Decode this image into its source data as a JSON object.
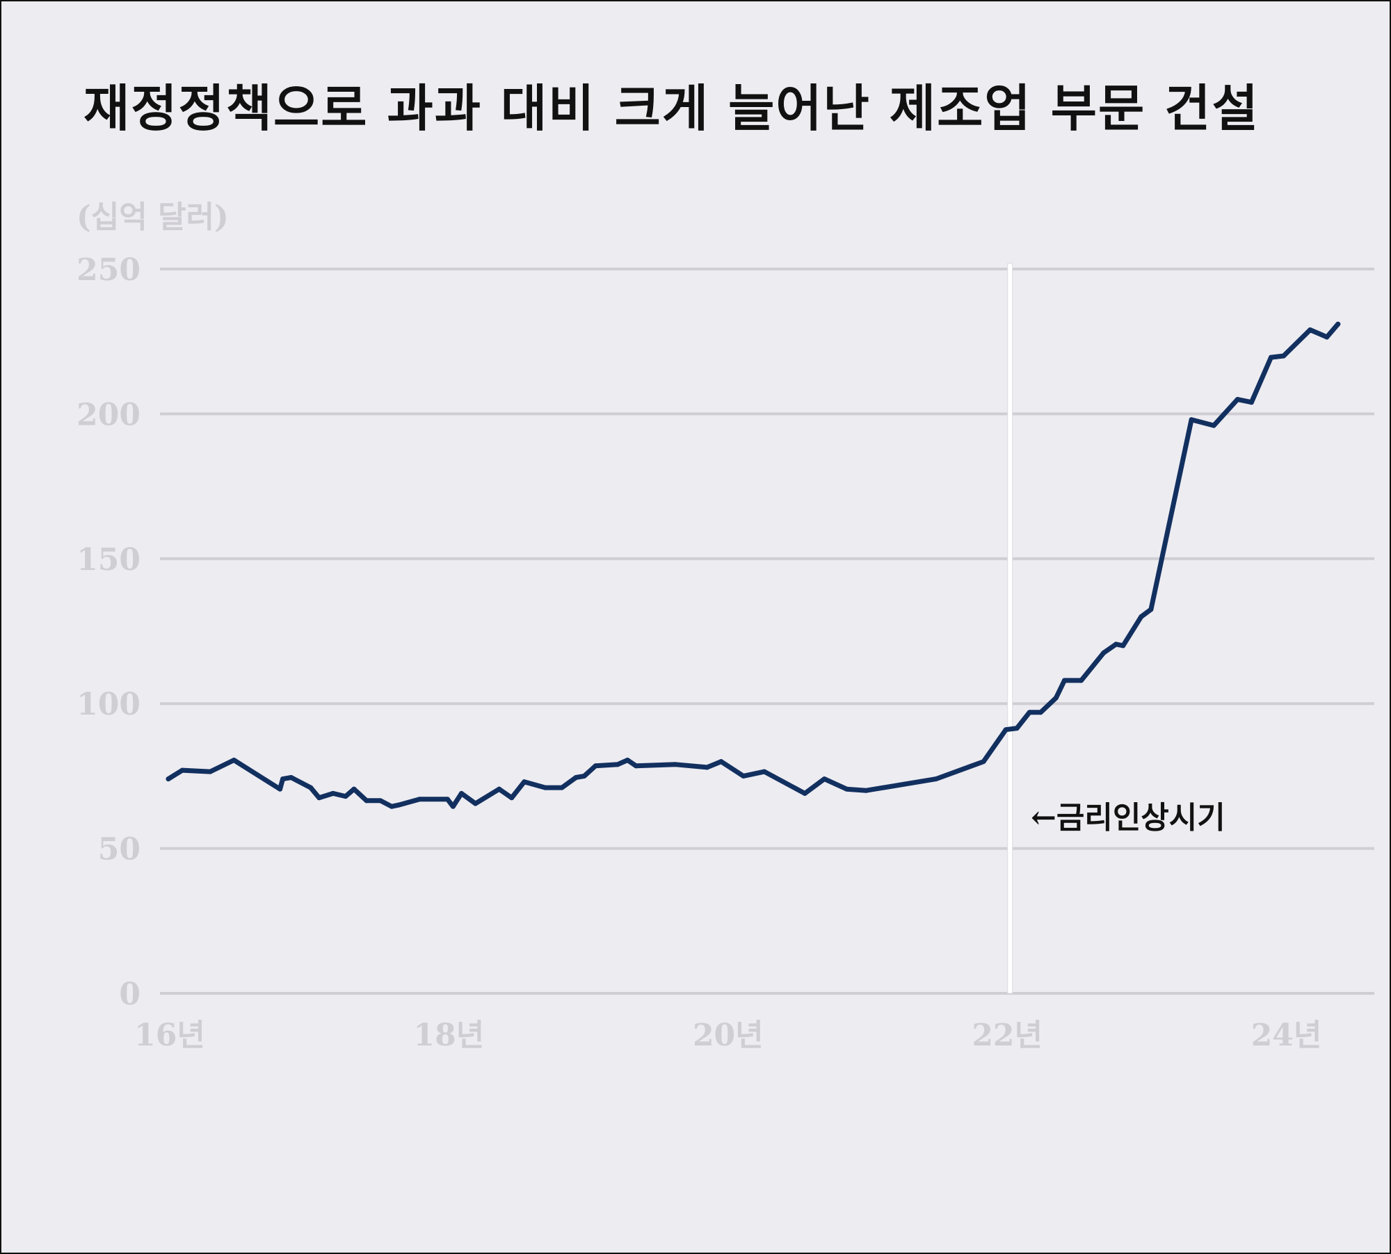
{
  "title": "재정정책으로 과과 대비 크게 늘어난 제조업 부문 건설",
  "colors": {
    "background": "#edecf1",
    "line": "#12305f",
    "grid": "#cfced3",
    "axis_text": "#cfced3",
    "marker": "#ffffff"
  },
  "chart_data": {
    "type": "line",
    "title": "재정정책으로 과과 대비 크게 늘어난 제조업 부문 건설",
    "ylabel": "(십억 달러)",
    "xlabel": "",
    "ylim": [
      0,
      250
    ],
    "yticks": [
      0,
      50,
      100,
      150,
      200,
      250
    ],
    "xlim": [
      2015.94,
      2024.64
    ],
    "xticks": [
      2016,
      2018,
      2020,
      2022,
      2024
    ],
    "xtick_labels": [
      "16년",
      "18년",
      "20년",
      "22년",
      "24년"
    ],
    "grid": true,
    "annotation": {
      "text": "←금리인상시기",
      "x": 2022.0
    },
    "series": [
      {
        "x": [
          2016.0,
          2016.1,
          2016.3,
          2016.47,
          2016.8,
          2016.82,
          2016.88,
          2017.02,
          2017.08,
          2017.18,
          2017.27,
          2017.33,
          2017.42,
          2017.52,
          2017.6,
          2017.65,
          2017.8,
          2018.0,
          2018.04,
          2018.1,
          2018.2,
          2018.37,
          2018.46,
          2018.55,
          2018.7,
          2018.82,
          2018.92,
          2018.98,
          2019.06,
          2019.22,
          2019.29,
          2019.35,
          2019.63,
          2019.86,
          2019.96,
          2020.12,
          2020.27,
          2020.56,
          2020.7,
          2020.86,
          2021.0,
          2021.5,
          2021.84,
          2022.0,
          2022.08,
          2022.17,
          2022.25,
          2022.36,
          2022.42,
          2022.54,
          2022.7,
          2022.79,
          2022.84,
          2022.97,
          2023.04,
          2023.33,
          2023.49,
          2023.66,
          2023.76,
          2023.9,
          2023.99,
          2024.18,
          2024.3,
          2024.38
        ],
        "y": [
          74,
          77,
          76.5,
          80.5,
          70.5,
          74,
          74.5,
          71,
          67.5,
          69,
          68,
          70.5,
          66.5,
          66.5,
          64.5,
          65,
          67,
          67,
          64.5,
          69,
          65.5,
          70.5,
          67.5,
          73,
          71,
          71,
          74.5,
          75,
          78.5,
          79,
          80.5,
          78.5,
          79,
          78,
          80,
          75,
          76.5,
          69,
          74,
          70.5,
          70,
          74,
          80,
          91,
          91.5,
          97,
          97,
          102,
          108,
          108,
          117.5,
          120.5,
          120,
          130,
          132.5,
          198,
          196,
          205,
          204,
          219.5,
          220,
          229,
          226.5,
          231
        ]
      }
    ]
  }
}
